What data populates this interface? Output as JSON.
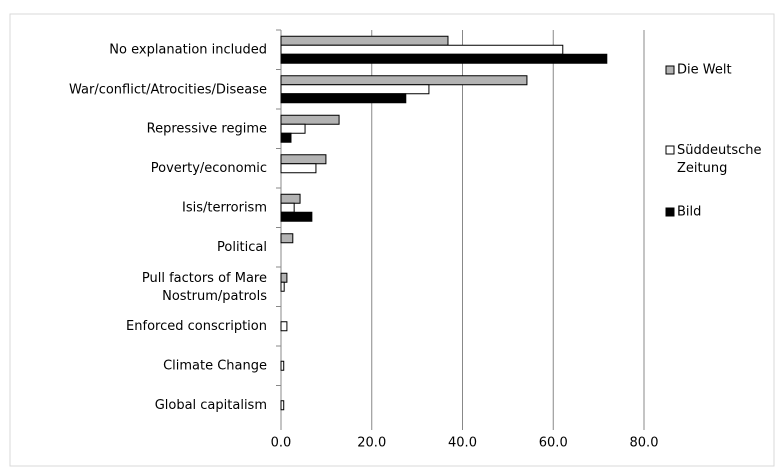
{
  "chart_data": {
    "type": "hbar",
    "categories": [
      "No explanation included",
      "War/conflict/Atrocities/Disease",
      "Repressive regime",
      "Poverty/economic",
      "Isis/terrorism",
      "Political",
      "Pull factors of Mare Nostrum/patrols",
      "Enforced conscription",
      "Climate Change",
      "Global capitalism"
    ],
    "series": [
      {
        "name": "Die Welt",
        "color": "#b3b3b3",
        "values": [
          36.8,
          54.2,
          12.8,
          9.9,
          4.2,
          2.6,
          1.3,
          0,
          0,
          0
        ]
      },
      {
        "name": "Süddeutsche Zeitung",
        "color": "#ffffff",
        "values": [
          62.1,
          32.6,
          5.3,
          7.7,
          2.9,
          0,
          0.7,
          1.3,
          0.6,
          0.6
        ]
      },
      {
        "name": "Bild",
        "color": "#000000",
        "values": [
          71.8,
          27.5,
          2.2,
          0,
          6.8,
          0,
          0,
          0,
          0,
          0
        ]
      }
    ],
    "xlim": [
      0,
      80
    ],
    "xticks": [
      {
        "value": 0,
        "label": "0.0"
      },
      {
        "value": 20,
        "label": "20.0"
      },
      {
        "value": 40,
        "label": "40.0"
      },
      {
        "value": 60,
        "label": "60.0"
      },
      {
        "value": 80,
        "label": "80.0"
      }
    ],
    "grid": true,
    "legend": "right"
  }
}
